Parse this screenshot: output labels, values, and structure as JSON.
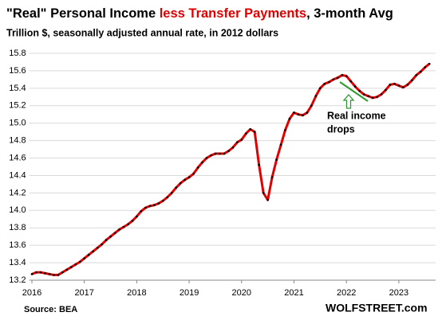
{
  "chart_data": {
    "type": "line",
    "title": [
      "\"Real\" Personal Income ",
      "less Transfer Payments",
      ", 3-month Avg"
    ],
    "title_highlight_color": "#e00000",
    "subtitle": "Trillion $, seasonally adjusted annual rate, in 2012 dollars",
    "source": "Source: BEA",
    "watermark": "WOLFSTREET.com",
    "annotation": [
      "Real income",
      "drops"
    ],
    "annotation_color": "#2e9b2e",
    "color": "#e00000",
    "marker_color": "#000000",
    "x": [
      2016,
      2016.083,
      2016.167,
      2016.25,
      2016.333,
      2016.417,
      2016.5,
      2016.583,
      2016.667,
      2016.75,
      2016.833,
      2016.917,
      2017,
      2017.083,
      2017.167,
      2017.25,
      2017.333,
      2017.417,
      2017.5,
      2017.583,
      2017.667,
      2017.75,
      2017.833,
      2017.917,
      2018,
      2018.083,
      2018.167,
      2018.25,
      2018.333,
      2018.417,
      2018.5,
      2018.583,
      2018.667,
      2018.75,
      2018.833,
      2018.917,
      2019,
      2019.083,
      2019.167,
      2019.25,
      2019.333,
      2019.417,
      2019.5,
      2019.583,
      2019.667,
      2019.75,
      2019.833,
      2019.917,
      2020,
      2020.083,
      2020.167,
      2020.25,
      2020.333,
      2020.417,
      2020.5,
      2020.583,
      2020.667,
      2020.75,
      2020.833,
      2020.917,
      2021,
      2021.083,
      2021.167,
      2021.25,
      2021.333,
      2021.417,
      2021.5,
      2021.583,
      2021.667,
      2021.75,
      2021.833,
      2021.917,
      2022,
      2022.083,
      2022.167,
      2022.25,
      2022.333,
      2022.417,
      2022.5,
      2022.583,
      2022.667,
      2022.75,
      2022.833,
      2022.917,
      2023,
      2023.083,
      2023.167,
      2023.25,
      2023.333,
      2023.417,
      2023.5,
      2023.583
    ],
    "values": [
      13.27,
      13.29,
      13.29,
      13.28,
      13.27,
      13.26,
      13.26,
      13.29,
      13.32,
      13.35,
      13.38,
      13.41,
      13.45,
      13.49,
      13.53,
      13.57,
      13.61,
      13.66,
      13.7,
      13.74,
      13.78,
      13.81,
      13.84,
      13.88,
      13.93,
      13.99,
      14.03,
      14.05,
      14.06,
      14.08,
      14.11,
      14.15,
      14.2,
      14.26,
      14.31,
      14.35,
      14.38,
      14.42,
      14.49,
      14.55,
      14.6,
      14.63,
      14.65,
      14.65,
      14.65,
      14.68,
      14.72,
      14.78,
      14.81,
      14.88,
      14.93,
      14.9,
      14.52,
      14.2,
      14.12,
      14.38,
      14.58,
      14.75,
      14.92,
      15.05,
      15.12,
      15.1,
      15.09,
      15.12,
      15.2,
      15.31,
      15.4,
      15.45,
      15.47,
      15.5,
      15.52,
      15.55,
      15.54,
      15.48,
      15.42,
      15.37,
      15.33,
      15.31,
      15.29,
      15.3,
      15.33,
      15.38,
      15.44,
      15.45,
      15.43,
      15.41,
      15.44,
      15.49,
      15.55,
      15.59,
      15.64,
      15.68
    ],
    "xlim": [
      2015.95,
      2023.7
    ],
    "xticks": [
      2016,
      2017,
      2018,
      2019,
      2020,
      2021,
      2022,
      2023
    ],
    "ylim": [
      13.2,
      15.8
    ],
    "yticks": [
      13.2,
      13.4,
      13.6,
      13.8,
      {
        "value": 14,
        "label": "14.0"
      },
      14.2,
      14.4,
      14.6,
      14.8,
      {
        "value": 15,
        "label": "15.0"
      },
      15.2,
      15.4,
      15.6,
      15.8
    ],
    "grid": true
  }
}
